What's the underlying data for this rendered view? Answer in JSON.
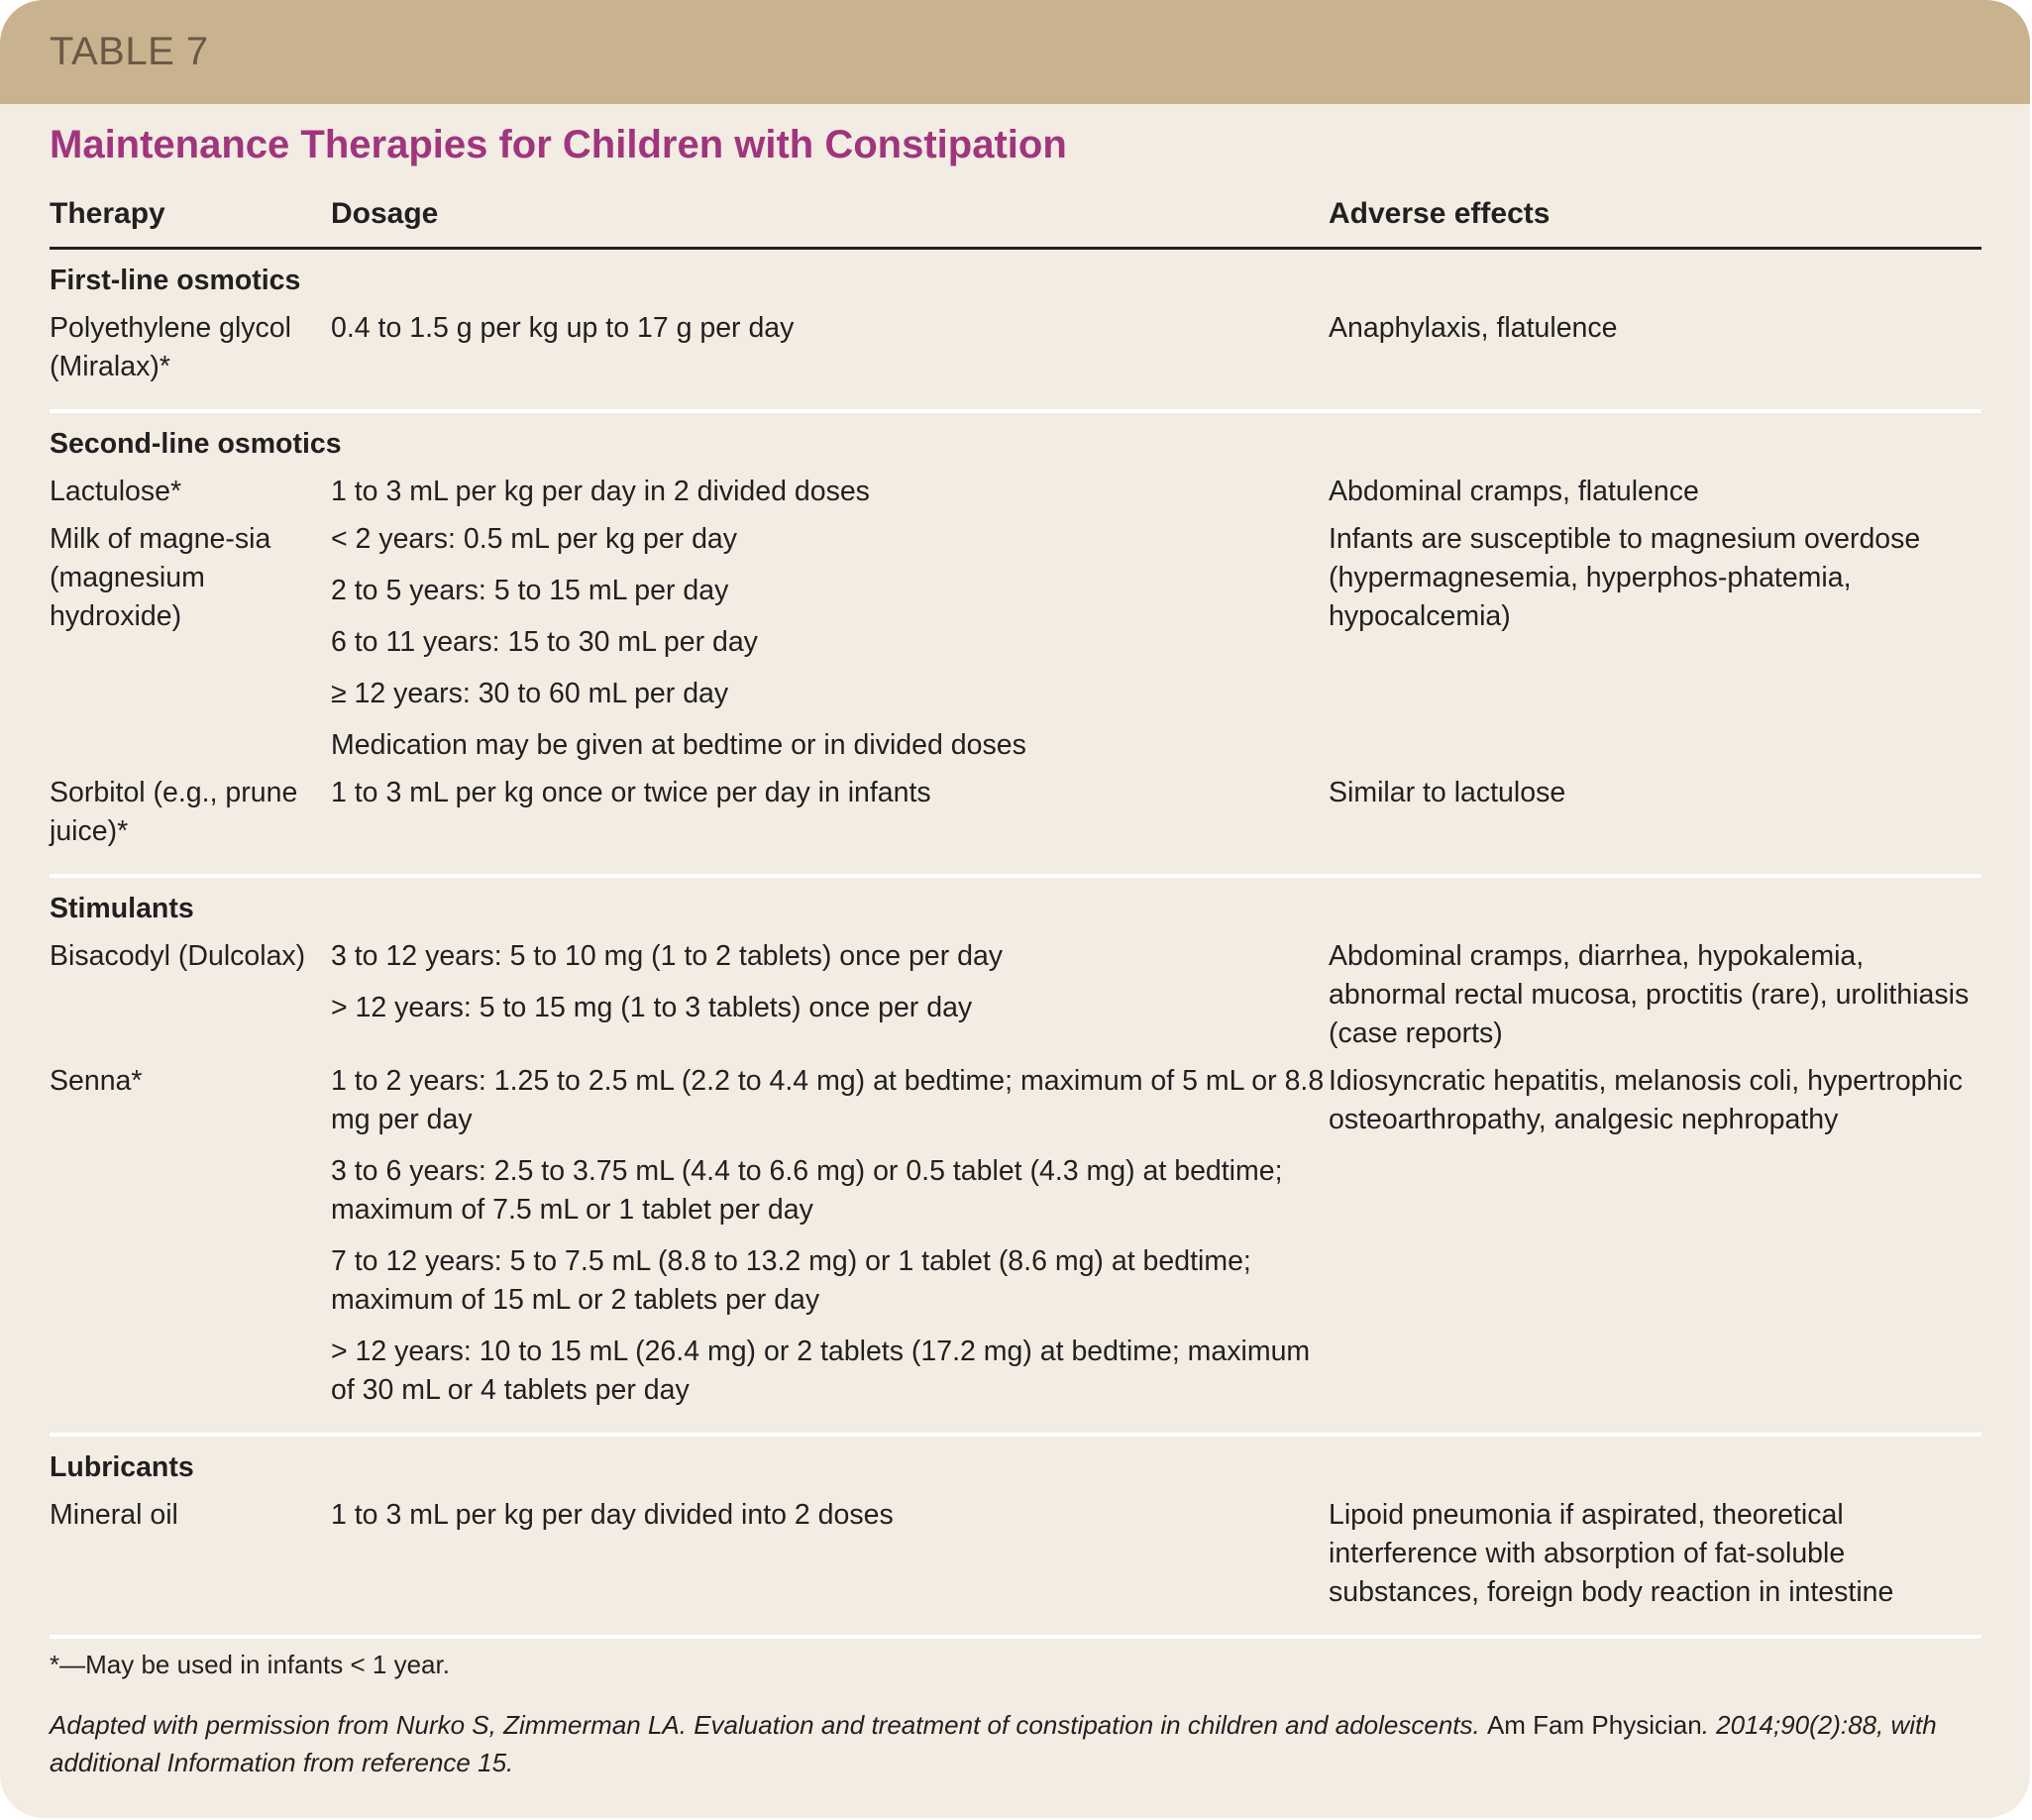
{
  "label": "TABLE 7",
  "title": "Maintenance Therapies for Children with Constipation",
  "columns": [
    "Therapy",
    "Dosage",
    "Adverse effects"
  ],
  "sections": [
    {
      "title": "First-line osmotics",
      "rows": [
        {
          "therapy": "Polyethylene glycol (Miralax)*",
          "dosage": [
            "0.4 to 1.5 g per kg up to 17 g per day"
          ],
          "adverse": "Anaphylaxis, flatulence"
        }
      ]
    },
    {
      "title": "Second-line osmotics",
      "rows": [
        {
          "therapy": "Lactulose*",
          "dosage": [
            "1 to 3 mL per kg per day in 2 divided doses"
          ],
          "adverse": "Abdominal cramps, flatulence"
        },
        {
          "therapy": "Milk of magne-sia (magnesium hydroxide)",
          "dosage": [
            "< 2 years: 0.5 mL per kg per day",
            "2 to 5 years: 5 to 15 mL per day",
            "6 to 11 years: 15 to 30 mL per day",
            "≥ 12 years: 30 to 60 mL per day",
            "Medication may be given at bedtime or in divided doses"
          ],
          "adverse": "Infants are susceptible to magnesium overdose (hypermagnesemia, hyperphos-phatemia, hypocalcemia)"
        },
        {
          "therapy": "Sorbitol (e.g., prune juice)*",
          "dosage": [
            "1 to 3 mL per kg once or twice per day in infants"
          ],
          "adverse": "Similar to lactulose"
        }
      ]
    },
    {
      "title": "Stimulants",
      "rows": [
        {
          "therapy": "Bisacodyl (Dulcolax)",
          "dosage": [
            "3 to 12 years: 5 to 10 mg (1 to 2 tablets) once per day",
            "> 12 years: 5 to 15 mg (1 to 3 tablets) once per day"
          ],
          "adverse": "Abdominal cramps, diarrhea, hypokalemia, abnormal rectal mucosa, proctitis (rare), urolithiasis (case reports)"
        },
        {
          "therapy": "Senna*",
          "dosage": [
            "1 to 2 years: 1.25 to 2.5 mL (2.2 to 4.4 mg) at bedtime; maximum of 5 mL or 8.8 mg per day",
            "3 to 6 years: 2.5 to 3.75 mL (4.4 to 6.6 mg) or 0.5 tablet (4.3 mg) at bedtime; maximum of 7.5 mL or 1 tablet per day",
            "7 to 12 years: 5 to 7.5 mL (8.8 to 13.2 mg) or 1 tablet (8.6 mg) at bedtime; maximum of 15 mL or 2 tablets per day",
            "> 12 years: 10 to 15 mL (26.4 mg) or 2 tablets (17.2 mg) at bedtime; maximum of 30 mL or 4 tablets per day"
          ],
          "adverse": "Idiosyncratic hepatitis, melanosis coli, hypertrophic osteoarthropathy, analgesic nephropathy"
        }
      ]
    },
    {
      "title": "Lubricants",
      "rows": [
        {
          "therapy": "Mineral oil",
          "dosage": [
            "1 to 3 mL per kg per day divided into 2 doses"
          ],
          "adverse": "Lipoid pneumonia if aspirated, theoretical interference with absorption of fat-soluble substances, foreign body reaction in intestine"
        }
      ]
    }
  ],
  "footnote": "*—May be used in infants < 1 year.",
  "source": {
    "part1": "Adapted with permission from Nurko S, Zimmerman LA. Evaluation and treatment of constipation in children and adolescents. ",
    "journal": "Am Fam Physician",
    "part2": ". 2014;90(2):88, with additional Information from reference 15."
  }
}
